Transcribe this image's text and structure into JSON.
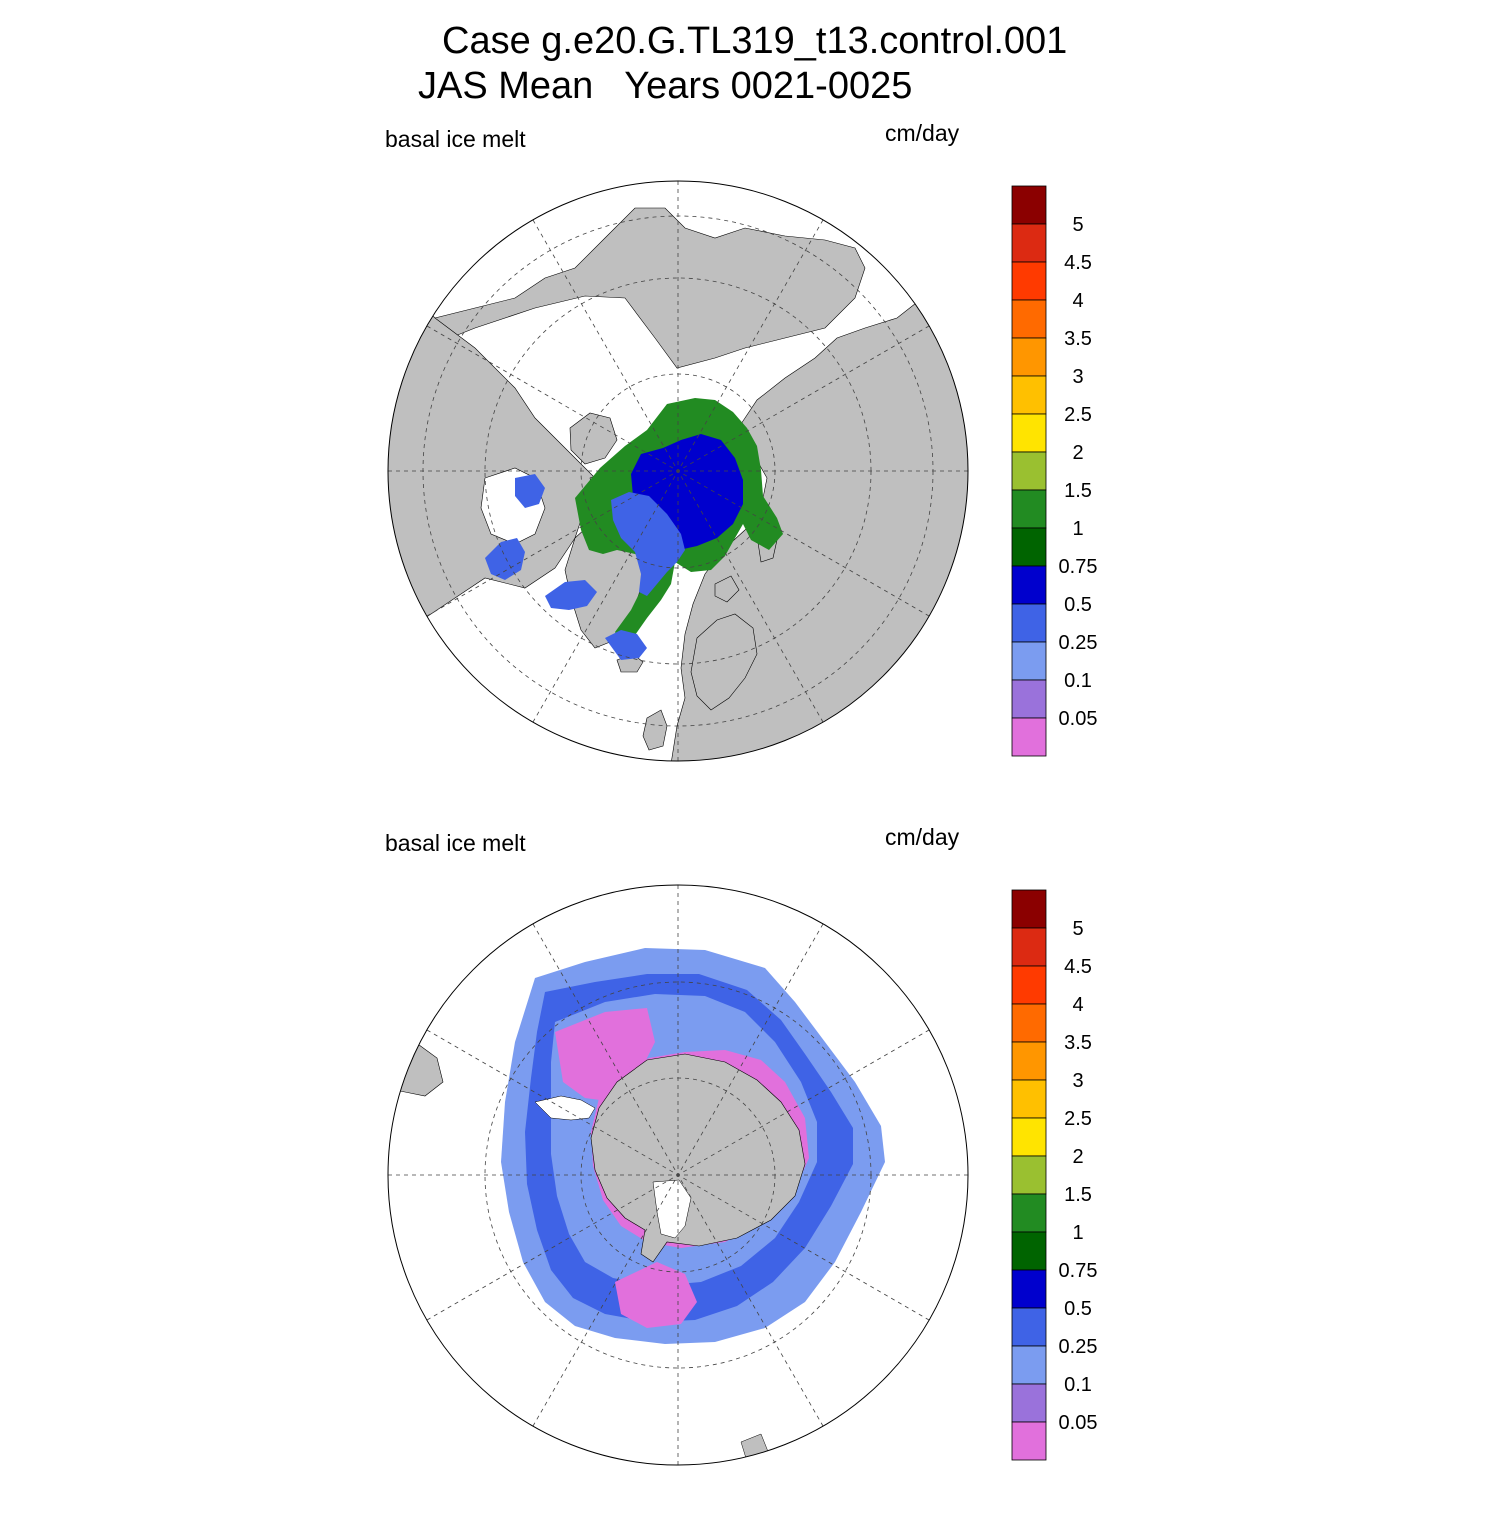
{
  "figure": {
    "title_line1": "Case g.e20.G.TL319_t13.control.001",
    "title_line2": "JAS Mean   Years 0021-0025"
  },
  "panels": [
    {
      "id": "north",
      "variable": "basal ice melt",
      "units": "cm/day",
      "hemisphere": "north"
    },
    {
      "id": "south",
      "variable": "basal ice melt",
      "units": "cm/day",
      "hemisphere": "south"
    }
  ],
  "colorbar": {
    "labels": [
      "5",
      "4.5",
      "4",
      "3.5",
      "3",
      "2.5",
      "2",
      "1.5",
      "1",
      "0.75",
      "0.5",
      "0.25",
      "0.1",
      "0.05"
    ],
    "colors": [
      "#8b0000",
      "#dc2a12",
      "#ff3a00",
      "#ff6a00",
      "#ff9600",
      "#ffc000",
      "#ffe400",
      "#9ac030",
      "#228b22",
      "#006400",
      "#0000cd",
      "#3f63e6",
      "#7b9cf0",
      "#9a72db",
      "#e170dc"
    ]
  },
  "map_colors": {
    "land": "#bfbfbf",
    "ocean": "#ffffff",
    "outline": "#000000"
  }
}
